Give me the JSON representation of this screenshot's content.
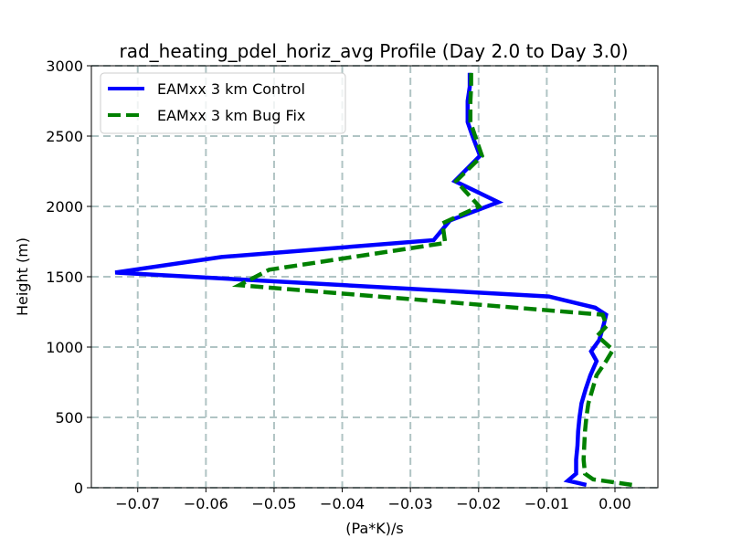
{
  "chart_data": {
    "type": "line",
    "title": "rad_heating_pdel_horiz_avg Profile (Day 2.0 to Day 3.0)",
    "xlabel": "(Pa*K)/s",
    "ylabel": "Height (m)",
    "xlim": [
      -0.0768,
      0.0063
    ],
    "ylim": [
      0,
      3000
    ],
    "xticks": [
      -0.07,
      -0.06,
      -0.05,
      -0.04,
      -0.03,
      -0.02,
      -0.01,
      0.0
    ],
    "xtick_labels": [
      "−0.07",
      "−0.06",
      "−0.05",
      "−0.04",
      "−0.03",
      "−0.02",
      "−0.01",
      "0.00"
    ],
    "yticks": [
      0,
      500,
      1000,
      1500,
      2000,
      2500,
      3000
    ],
    "ytick_labels": [
      "0",
      "500",
      "1000",
      "1500",
      "2000",
      "2500",
      "3000"
    ],
    "grid": true,
    "legend_position": "top-left",
    "series": [
      {
        "name": "EAMxx 3 km Control",
        "color": "#0000ff",
        "linestyle": "solid",
        "points": [
          [
            -0.0042,
            20
          ],
          [
            -0.0069,
            50
          ],
          [
            -0.0057,
            100
          ],
          [
            -0.0057,
            200
          ],
          [
            -0.0055,
            300
          ],
          [
            -0.0054,
            400
          ],
          [
            -0.0052,
            500
          ],
          [
            -0.0049,
            600
          ],
          [
            -0.0043,
            700
          ],
          [
            -0.0036,
            800
          ],
          [
            -0.0027,
            900
          ],
          [
            -0.0035,
            970
          ],
          [
            -0.0023,
            1050
          ],
          [
            -0.0017,
            1150
          ],
          [
            -0.0013,
            1230
          ],
          [
            -0.0029,
            1280
          ],
          [
            -0.0097,
            1360
          ],
          [
            -0.0733,
            1530
          ],
          [
            -0.0577,
            1640
          ],
          [
            -0.0266,
            1760
          ],
          [
            -0.0242,
            1900
          ],
          [
            -0.0171,
            2030
          ],
          [
            -0.0235,
            2180
          ],
          [
            -0.0198,
            2360
          ],
          [
            -0.0209,
            2500
          ],
          [
            -0.0216,
            2600
          ],
          [
            -0.0216,
            2750
          ],
          [
            -0.0213,
            2850
          ],
          [
            -0.0213,
            2950
          ]
        ]
      },
      {
        "name": "EAMxx 3 km Bug Fix",
        "color": "#008000",
        "linestyle": "dashed",
        "points": [
          [
            0.0025,
            20
          ],
          [
            -0.0032,
            60
          ],
          [
            -0.0044,
            100
          ],
          [
            -0.0046,
            200
          ],
          [
            -0.0045,
            300
          ],
          [
            -0.0044,
            400
          ],
          [
            -0.0042,
            500
          ],
          [
            -0.0039,
            600
          ],
          [
            -0.0033,
            700
          ],
          [
            -0.0027,
            800
          ],
          [
            -0.0013,
            900
          ],
          [
            -0.0003,
            980
          ],
          [
            -0.0026,
            1080
          ],
          [
            -0.0012,
            1150
          ],
          [
            -0.0018,
            1230
          ],
          [
            -0.0551,
            1440
          ],
          [
            -0.0507,
            1550
          ],
          [
            -0.0249,
            1740
          ],
          [
            -0.0253,
            1880
          ],
          [
            -0.0199,
            2000
          ],
          [
            -0.0233,
            2180
          ],
          [
            -0.0195,
            2360
          ],
          [
            -0.0205,
            2500
          ],
          [
            -0.0212,
            2600
          ],
          [
            -0.0212,
            2750
          ],
          [
            -0.0211,
            2850
          ],
          [
            -0.0211,
            2950
          ]
        ]
      }
    ]
  }
}
